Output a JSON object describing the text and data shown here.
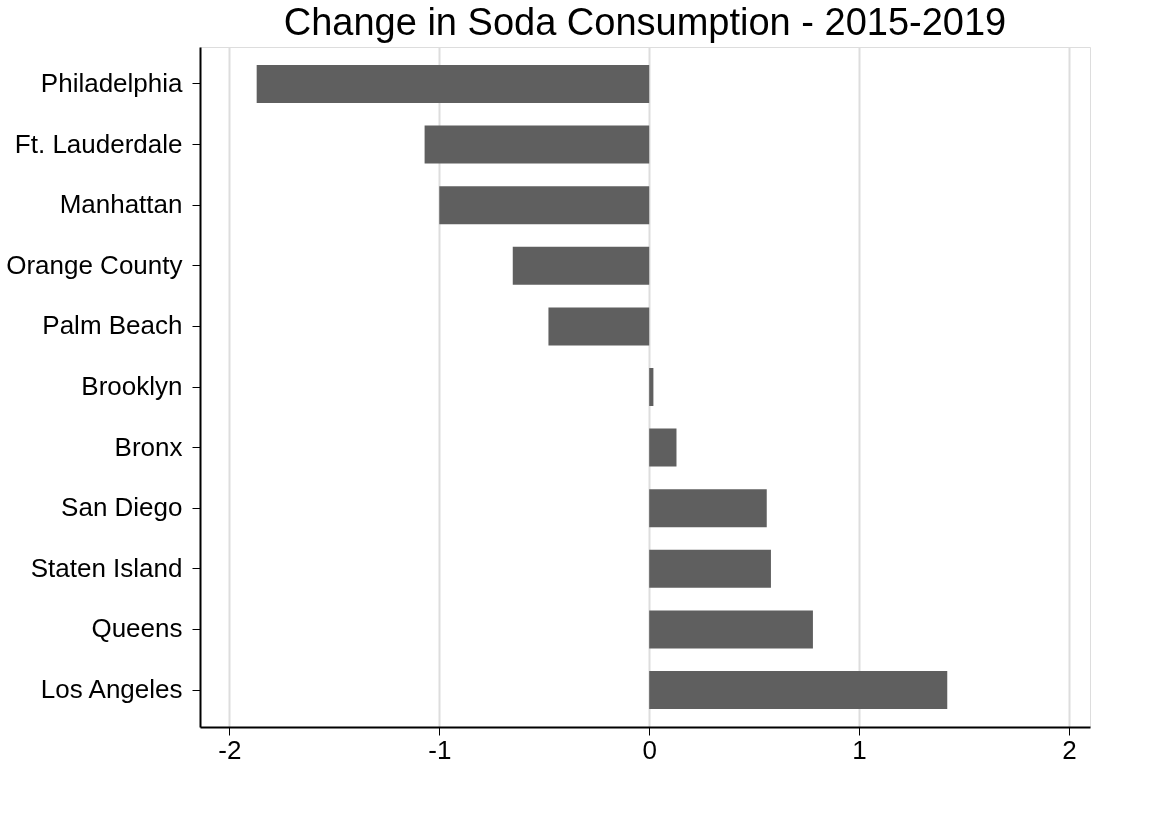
{
  "chart_data": {
    "type": "bar",
    "orientation": "horizontal",
    "title": "Change in Soda Consumption - 2015-2019",
    "categories": [
      "Philadelphia",
      "Ft. Lauderdale",
      "Manhattan",
      "Orange County",
      "Palm Beach",
      "Brooklyn",
      "Bronx",
      "San Diego",
      "Staten Island",
      "Queens",
      "Los Angeles"
    ],
    "values": [
      -1.87,
      -1.07,
      -1.0,
      -0.65,
      -0.48,
      0.02,
      0.13,
      0.56,
      0.58,
      0.78,
      1.42
    ],
    "color": "#5f5f5f",
    "xlim": [
      -2.14,
      2.1
    ],
    "xticks": [
      -2,
      -1,
      0,
      1,
      2
    ],
    "grid": "x"
  }
}
